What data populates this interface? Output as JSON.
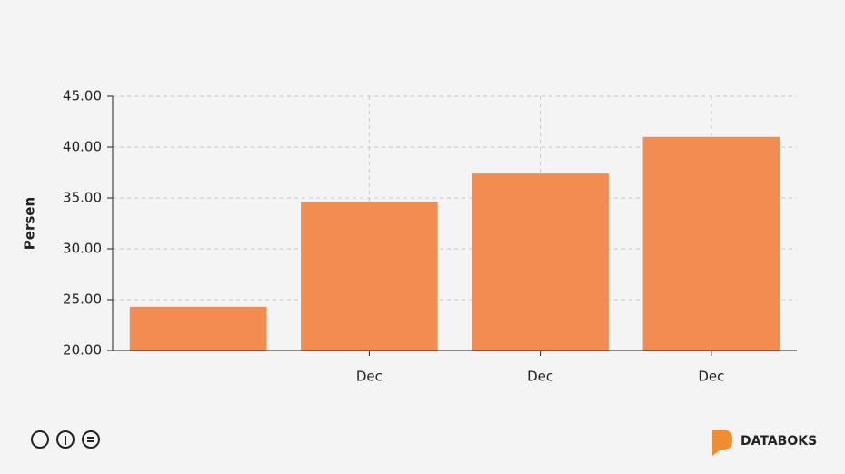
{
  "chart_data": {
    "type": "bar",
    "y_label": "Persen",
    "categories": [
      null,
      "Dec",
      "Dec",
      "Dec"
    ],
    "values": [
      24.3,
      34.6,
      37.4,
      41.0
    ],
    "color": "#f28c50",
    "ylim": [
      20,
      45
    ],
    "yticks": [
      {
        "value": 20,
        "label": "20.00"
      },
      {
        "value": 25,
        "label": "25.00"
      },
      {
        "value": 30,
        "label": "30.00"
      },
      {
        "value": 35,
        "label": "35.00"
      },
      {
        "value": 40,
        "label": "40.00"
      },
      {
        "value": 45,
        "label": "45.00"
      }
    ],
    "grid": true
  },
  "brand": "DATABOKS"
}
